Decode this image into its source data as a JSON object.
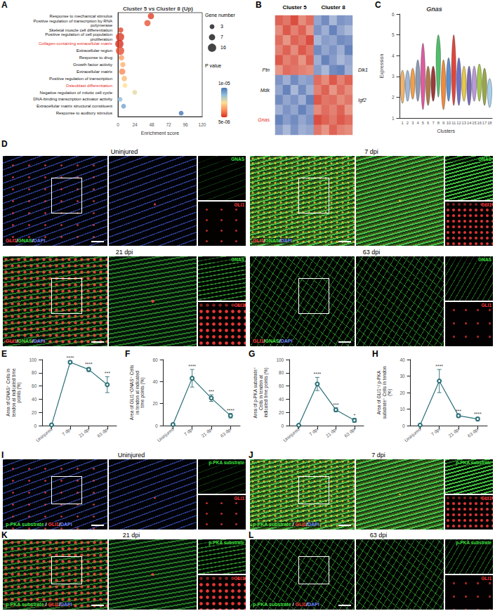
{
  "chart_data": [
    {
      "panel": "A",
      "type": "scatter",
      "title": "Cluster 5 vs Cluster 8 (Up)",
      "xlabel": "Enrichment score",
      "categories": [
        "Response to mechanical stimulus",
        "Positive regulation of transcription by RNA polymerase",
        "Skeletal muscle cell differentiation",
        "Positive regulation of cell population proliferation",
        "Collagen-containing extracellular matrix",
        "Extracellular region",
        "Response to drug",
        "Growth factor activity",
        "Extracellular matrix",
        "Positive regulation of transcription",
        "Osteoblast differentiation",
        "Negative regulation of mitotic cell cycle",
        "DNA-binding transcription activator activity",
        "Extracellular matrix structural constituent",
        "Response to auditory stimulus"
      ],
      "highlighted": [
        "Collagen-containing extracellular matrix",
        "Osteoblast differentiation"
      ],
      "highlight_color": "#e8291c",
      "values": [
        47,
        42,
        4,
        3,
        2,
        3,
        5,
        7,
        6,
        9,
        10,
        24,
        3,
        8,
        90
      ],
      "gene_number": [
        7,
        7,
        4,
        16,
        16,
        16,
        5,
        4,
        7,
        5,
        3,
        3,
        3,
        3,
        3
      ],
      "p_value": [
        5.2e-06,
        5.5e-06,
        5.3e-06,
        5.1e-06,
        5e-06,
        5.4e-06,
        6.5e-06,
        6.8e-06,
        6.2e-06,
        7e-06,
        7.5e-06,
        7.8e-06,
        8.8e-06,
        9.2e-06,
        1e-05
      ],
      "size_legend": {
        "title": "Gene number",
        "values": [
          3,
          7,
          16
        ]
      },
      "color_bar": {
        "title": "P value",
        "range": [
          5e-06,
          1e-05
        ],
        "ticks": [
          {
            "value": 1e-05,
            "label": "1e-05"
          },
          {
            "value": 5e-06,
            "label": "5e-06"
          }
        ]
      },
      "xlim": [
        0,
        120
      ],
      "xticks": [
        0,
        24,
        48,
        72,
        96,
        120
      ],
      "grid": false
    },
    {
      "panel": "B",
      "type": "heatmap",
      "groups": [
        "Cluster 5",
        "Cluster 8"
      ],
      "rows_left": [
        null,
        null,
        null,
        null,
        null,
        "Ptn",
        null,
        "Mdk",
        null,
        null,
        "Gnas",
        null
      ],
      "rows_right": [
        null,
        null,
        null,
        null,
        null,
        "Dlk1",
        null,
        null,
        "Igf2",
        null,
        null,
        null
      ],
      "highlighted": [
        "Gnas"
      ],
      "highlight_color": "#e8291c",
      "cells": [
        [
          1.6,
          1.4,
          1.8,
          1.2,
          1.5,
          -1.2,
          -1.5,
          -1.0,
          -1.4,
          -1.3
        ],
        [
          1.2,
          1.7,
          1.3,
          1.6,
          1.1,
          -1.4,
          -1.1,
          -1.6,
          -1.2,
          -1.0
        ],
        [
          1.5,
          1.1,
          1.6,
          1.4,
          1.8,
          -1.0,
          -1.3,
          -1.2,
          -1.5,
          -1.4
        ],
        [
          1.3,
          1.6,
          1.2,
          1.7,
          1.4,
          -1.5,
          -1.2,
          -1.4,
          -1.1,
          -1.6
        ],
        [
          1.7,
          1.3,
          1.5,
          1.1,
          1.6,
          -1.1,
          -1.6,
          -1.3,
          -1.0,
          -1.2
        ],
        [
          1.1,
          1.5,
          1.4,
          1.3,
          1.2,
          -1.3,
          -1.0,
          -1.5,
          -1.6,
          -1.1
        ],
        [
          -1.4,
          -1.1,
          -1.5,
          -1.2,
          -1.3,
          1.5,
          1.2,
          1.7,
          1.3,
          1.6
        ],
        [
          -1.2,
          -1.6,
          -1.0,
          -1.5,
          -1.1,
          1.3,
          1.6,
          1.1,
          1.5,
          1.2
        ],
        [
          -1.5,
          -1.2,
          -1.4,
          -1.1,
          -1.6,
          1.7,
          1.4,
          1.5,
          1.2,
          1.4
        ],
        [
          -1.1,
          -1.4,
          -1.2,
          -1.6,
          -1.3,
          1.2,
          1.5,
          1.3,
          1.6,
          1.1
        ],
        [
          -1.6,
          -1.3,
          -1.5,
          -1.2,
          -1.4,
          1.8,
          1.6,
          1.4,
          1.7,
          1.5
        ],
        [
          -1.3,
          -1.0,
          -1.4,
          -1.1,
          -1.2,
          1.4,
          1.1,
          1.6,
          1.3,
          1.2
        ]
      ],
      "color_range": [
        -2,
        2
      ]
    },
    {
      "panel": "C",
      "type": "violin",
      "title": "Gnas",
      "xlabel": "Clusters",
      "ylabel": "Expression",
      "categories": [
        "1",
        "2",
        "3",
        "4",
        "5",
        "6",
        "7",
        "8",
        "9",
        "10",
        "11",
        "12",
        "13",
        "14",
        "15",
        "16",
        "17",
        "18"
      ],
      "min": [
        1.7,
        1.8,
        1.9,
        1.8,
        1.4,
        1.6,
        1.8,
        2.0,
        1.4,
        1.8,
        1.6,
        1.6,
        1.8,
        1.6,
        1.8,
        1.8,
        1.6,
        1.5
      ],
      "median": [
        2.6,
        2.6,
        2.7,
        2.8,
        3.0,
        2.6,
        2.7,
        3.9,
        2.6,
        2.8,
        3.2,
        2.8,
        2.6,
        2.5,
        2.6,
        2.8,
        2.6,
        2.3
      ],
      "max": [
        3.3,
        3.3,
        3.4,
        3.8,
        4.6,
        3.5,
        3.5,
        5.0,
        3.8,
        3.9,
        5.0,
        3.9,
        3.5,
        3.5,
        3.5,
        3.6,
        3.4,
        2.9
      ],
      "colors": [
        "#f2b36b",
        "#9fb7d9",
        "#f0a04b",
        "#8c9bb5",
        "#e05aa0",
        "#b07a4a",
        "#9b3b3b",
        "#4fbf6a",
        "#f08a3c",
        "#5a8fd0",
        "#e2453a",
        "#6f6fc8",
        "#e6c84a",
        "#7a6ab8",
        "#b99ad8",
        "#a6c84a",
        "#9aa64a",
        "#a8d0ec"
      ],
      "ylim": [
        1,
        6
      ],
      "yticks": [
        1,
        2,
        3,
        4,
        5,
        6
      ],
      "grid": false
    },
    {
      "panel": "E",
      "type": "line",
      "ylabel": "Area of GNAS⁺ Cells in tendon at indicated time points (%)",
      "categories": [
        "Uninjured",
        "7 dpi",
        "21 dpi",
        "63 dpi"
      ],
      "values": [
        1,
        96,
        85,
        62
      ],
      "errors": [
        0.5,
        2,
        3,
        12
      ],
      "significance": [
        null,
        "****",
        "****",
        "***"
      ],
      "color": "#5cc6cf",
      "marker": "open circle",
      "line_style": "solid",
      "ylim": [
        0,
        100
      ],
      "yticks": [
        0,
        20,
        40,
        60,
        80,
        100
      ],
      "grid": false
    },
    {
      "panel": "F",
      "type": "line",
      "ylabel": "Area of GLI1⁺GNAS⁺ Cells in tendon at indicated time points (%)",
      "categories": [
        "Uninjured",
        "7 dpi",
        "21 dpi",
        "63 dpi"
      ],
      "values": [
        1,
        43,
        25,
        9
      ],
      "errors": [
        0.5,
        8,
        3,
        2
      ],
      "significance": [
        null,
        "****",
        "***",
        "****"
      ],
      "color": "#5cc6cf",
      "marker": "open circle",
      "line_style": "solid",
      "ylim": [
        0,
        60
      ],
      "yticks": [
        0,
        20,
        40,
        60
      ],
      "grid": false
    },
    {
      "panel": "G",
      "type": "line",
      "ylabel": "Area of p-PKA substrate⁺ Cells in tendon at indicated time points (%)",
      "categories": [
        "Uninjured",
        "7 dpi",
        "21 dpi",
        "63 dpi"
      ],
      "values": [
        0.5,
        63,
        24,
        8
      ],
      "errors": [
        0.5,
        10,
        3,
        3
      ],
      "significance": [
        null,
        "****",
        "***",
        "*"
      ],
      "color": "#5cc6cf",
      "marker": "open circle",
      "line_style": "solid",
      "ylim": [
        0,
        100
      ],
      "yticks": [
        0,
        20,
        40,
        60,
        80,
        100
      ],
      "grid": false
    },
    {
      "panel": "H",
      "type": "line",
      "ylabel": "Area of GLI1⁺/ p-PKA substrate⁺ Cells in tendon (%)",
      "categories": [
        "Uninjured",
        "7 dpi",
        "21 dpi",
        "63 dpi"
      ],
      "values": [
        0.3,
        27,
        6,
        4
      ],
      "errors": [
        0.3,
        7,
        1,
        1
      ],
      "significance": [
        null,
        "****",
        "***",
        "****"
      ],
      "color": "#5cc6cf",
      "marker": "open circle",
      "line_style": "solid",
      "ylim": [
        0,
        40
      ],
      "yticks": [
        0,
        10,
        20,
        30,
        40
      ],
      "grid": false
    }
  ],
  "image_panels": [
    {
      "panel": "D",
      "images": [
        {
          "title": "Uninjured",
          "overlay": [
            {
              "text": "GLI1",
              "color": "#ff3b3b"
            },
            {
              "text": "/",
              "color": "#ffffff"
            },
            {
              "text": "GNAS",
              "color": "#3fe03f"
            },
            {
              "text": "/",
              "color": "#ffffff"
            },
            {
              "text": "DAPI",
              "color": "#6a86ff"
            }
          ],
          "insets": [
            {
              "text": "GNAS",
              "color": "#3fe03f"
            },
            {
              "text": "GLI1",
              "color": "#ff3b3b"
            }
          ]
        },
        {
          "title": "7 dpi",
          "overlay": [
            {
              "text": "GLI1",
              "color": "#ff3b3b"
            },
            {
              "text": "/",
              "color": "#ffffff"
            },
            {
              "text": "GNAS",
              "color": "#3fe03f"
            },
            {
              "text": "/",
              "color": "#ffffff"
            },
            {
              "text": "DAPI",
              "color": "#6a86ff"
            }
          ],
          "insets": [
            {
              "text": "GNAS",
              "color": "#3fe03f"
            },
            {
              "text": "GLI1",
              "color": "#ff3b3b"
            }
          ]
        },
        {
          "title": "21 dpi",
          "overlay": [
            {
              "text": "GLI1",
              "color": "#ff3b3b"
            },
            {
              "text": "/",
              "color": "#ffffff"
            },
            {
              "text": "GNAS",
              "color": "#3fe03f"
            },
            {
              "text": "/",
              "color": "#ffffff"
            },
            {
              "text": "DAPI",
              "color": "#6a86ff"
            }
          ],
          "insets": [
            {
              "text": "GNAS",
              "color": "#3fe03f"
            },
            {
              "text": "GLI1",
              "color": "#ff3b3b"
            }
          ]
        },
        {
          "title": "63 dpi",
          "overlay": [
            {
              "text": "GLI1",
              "color": "#ff3b3b"
            },
            {
              "text": "/",
              "color": "#ffffff"
            },
            {
              "text": "GNAS",
              "color": "#3fe03f"
            },
            {
              "text": "/",
              "color": "#ffffff"
            },
            {
              "text": "DAPI",
              "color": "#6a86ff"
            }
          ],
          "insets": [
            {
              "text": "GNAS",
              "color": "#3fe03f"
            },
            {
              "text": "GLI1",
              "color": "#ff3b3b"
            }
          ]
        }
      ]
    },
    {
      "images": [
        {
          "panel": "I",
          "title": "Uninjured",
          "overlay": [
            {
              "text": "p-PKA substrate",
              "color": "#3fe03f"
            },
            {
              "text": " / ",
              "color": "#ffffff"
            },
            {
              "text": "GLI1",
              "color": "#ff3b3b"
            },
            {
              "text": "/",
              "color": "#ffffff"
            },
            {
              "text": "DAPI",
              "color": "#6a86ff"
            }
          ],
          "insets": [
            {
              "text": "p-PKA substrate",
              "color": "#3fe03f"
            },
            {
              "text": "GLI1",
              "color": "#ff3b3b"
            }
          ]
        },
        {
          "panel": "J",
          "title": "7 dpi",
          "overlay": [
            {
              "text": "p-PKA substrate",
              "color": "#3fe03f"
            },
            {
              "text": " / ",
              "color": "#ffffff"
            },
            {
              "text": "GLI1",
              "color": "#ff3b3b"
            },
            {
              "text": "/",
              "color": "#ffffff"
            },
            {
              "text": "DAPI",
              "color": "#6a86ff"
            }
          ],
          "insets": [
            {
              "text": "p-PKA substrate",
              "color": "#3fe03f"
            },
            {
              "text": "GLI1",
              "color": "#ff3b3b"
            }
          ]
        },
        {
          "panel": "K",
          "title": "21 dpi",
          "overlay": [
            {
              "text": "p-PKA substrate",
              "color": "#3fe03f"
            },
            {
              "text": " / ",
              "color": "#ffffff"
            },
            {
              "text": "GLI1",
              "color": "#ff3b3b"
            },
            {
              "text": "/",
              "color": "#ffffff"
            },
            {
              "text": "DAPI",
              "color": "#6a86ff"
            }
          ],
          "insets": [
            {
              "text": "p-PKA substrate",
              "color": "#3fe03f"
            },
            {
              "text": "GLI1",
              "color": "#ff3b3b"
            }
          ]
        },
        {
          "panel": "L",
          "title": "63 dpi",
          "overlay": [
            {
              "text": "p-PKA substrate",
              "color": "#3fe03f"
            },
            {
              "text": " / ",
              "color": "#ffffff"
            },
            {
              "text": "GLI1",
              "color": "#ff3b3b"
            },
            {
              "text": "/",
              "color": "#ffffff"
            },
            {
              "text": "DAPI",
              "color": "#6a86ff"
            }
          ],
          "insets": [
            {
              "text": "p-PKA substrate",
              "color": "#3fe03f"
            },
            {
              "text": "GLI1",
              "color": "#ff3b3b"
            }
          ]
        }
      ]
    }
  ]
}
